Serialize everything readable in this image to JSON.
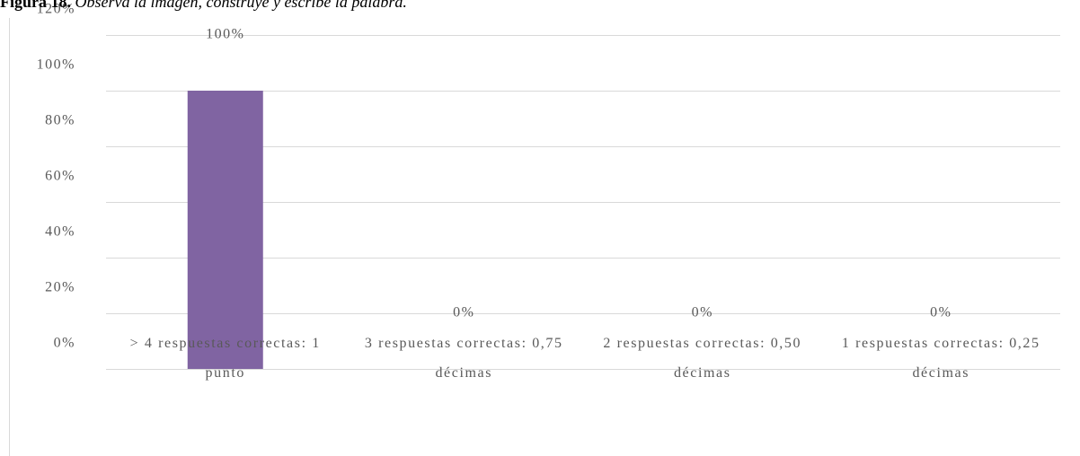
{
  "chart_data": {
    "type": "bar",
    "figure_label": "Figura 18.",
    "title": "Observa la imagen, construye y escribe la palabra.",
    "categories": [
      "> 4 respuestas correctas: 1 punto",
      "3 respuestas correctas: 0,75 décimas",
      "2 respuestas correctas: 0,50 décimas",
      "1 respuestas correctas: 0,25 décimas"
    ],
    "values": [
      100,
      0,
      0,
      0
    ],
    "value_labels": [
      "100%",
      "0%",
      "0%",
      "0%"
    ],
    "color": "#8064a2",
    "ylim": [
      0,
      120
    ],
    "yticks": [
      {
        "value": 0,
        "label": "0%"
      },
      {
        "value": 20,
        "label": "20%"
      },
      {
        "value": 40,
        "label": "40%"
      },
      {
        "value": 60,
        "label": "60%"
      },
      {
        "value": 80,
        "label": "80%"
      },
      {
        "value": 100,
        "label": "100%"
      },
      {
        "value": 120,
        "label": "120%"
      }
    ],
    "grid": true
  }
}
